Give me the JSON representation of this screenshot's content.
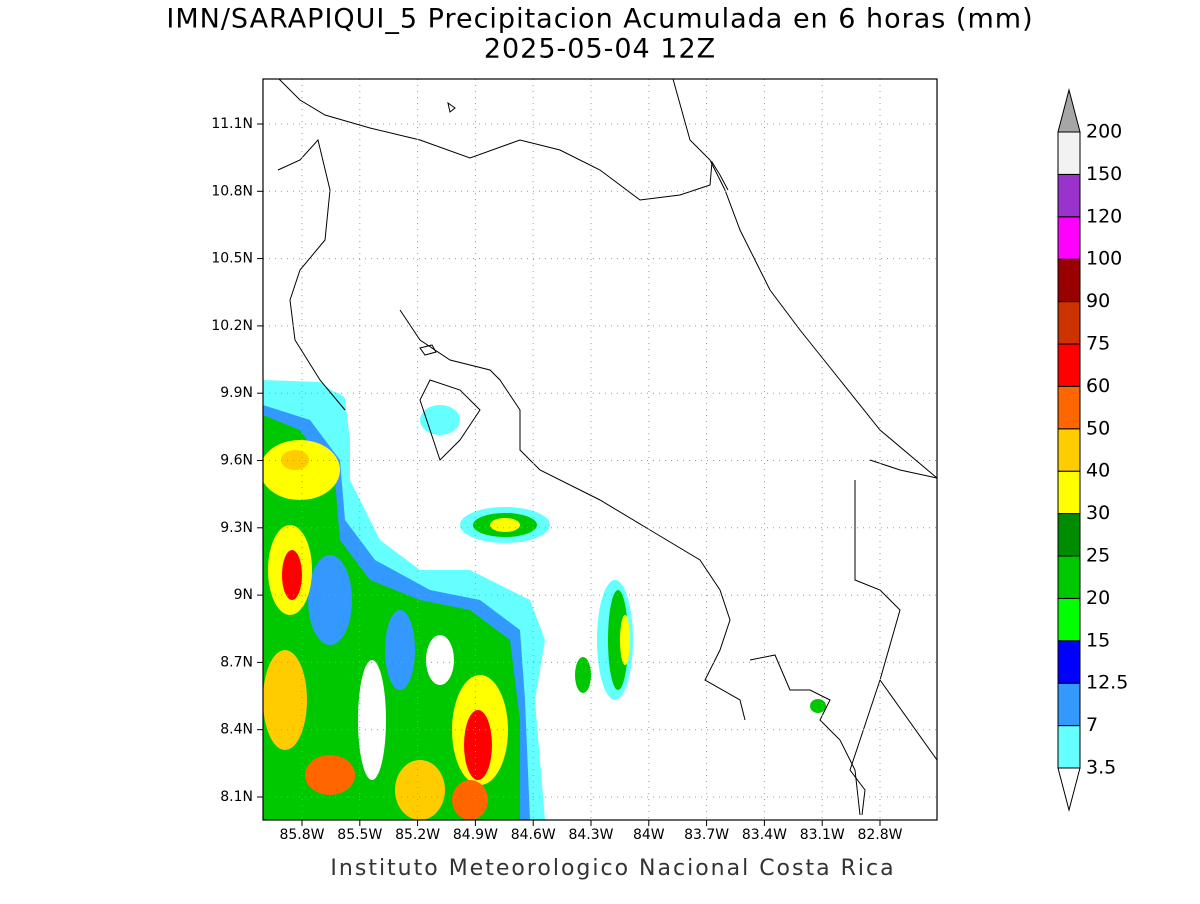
{
  "title": "IMN/SARAPIQUI_5 Precipitacion Acumulada en 6 horas (mm)",
  "subtitle": "2025-05-04 12Z",
  "lat_labels": [
    "11.1N",
    "10.8N",
    "10.5N",
    "10.2N",
    "9.9N",
    "9.6N",
    "9.3N",
    "9N",
    "8.7N",
    "8.4N",
    "8.1N"
  ],
  "lon_labels": [
    "85.8W",
    "85.5W",
    "85.2W",
    "84.9W",
    "84.6W",
    "84.3W",
    "84W",
    "83.7W",
    "83.4W",
    "83.1W",
    "82.8W"
  ],
  "colorbar": {
    "levels": [
      3.5,
      7,
      12.5,
      15,
      20,
      25,
      30,
      40,
      50,
      60,
      75,
      90,
      100,
      120,
      150,
      200
    ],
    "colors": [
      "#66ffff",
      "#3399ff",
      "#0000ff",
      "#00ff00",
      "#00c800",
      "#008c00",
      "#ffff00",
      "#ffcc00",
      "#ff6600",
      "#ff0000",
      "#cc3300",
      "#990000",
      "#ff00ff",
      "#9933cc",
      "#f2f2f2"
    ],
    "under_color": "#ffffff",
    "over_color": "#a6a6a6"
  },
  "footer": "Instituto Meteorologico Nacional Costa Rica"
}
